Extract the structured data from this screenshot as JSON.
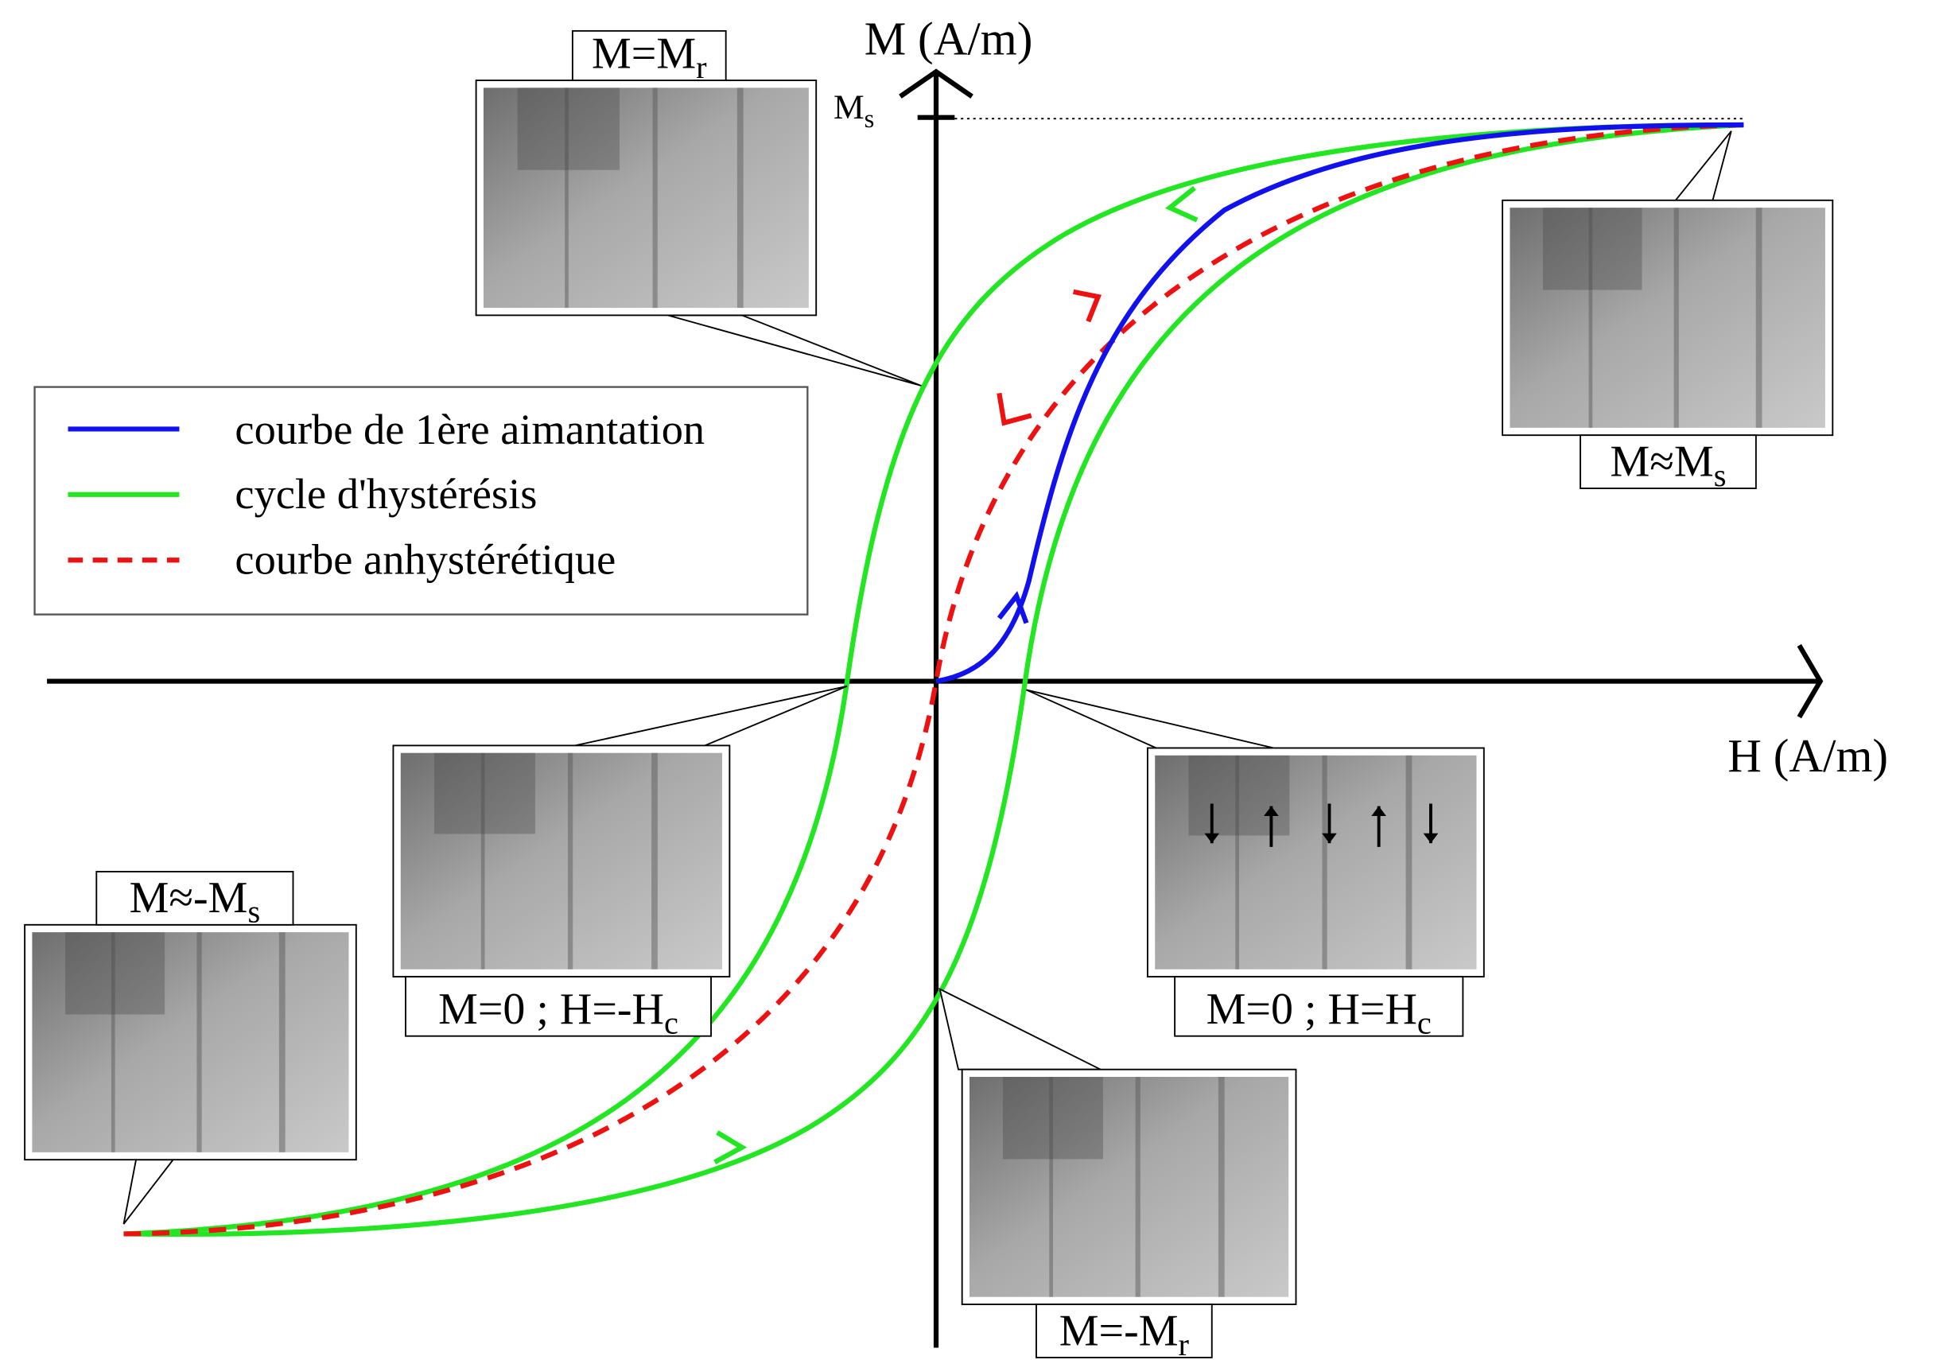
{
  "axes": {
    "x_label": "H (A/m)",
    "y_label": "M (A/m)",
    "ms_tick": {
      "text": "M",
      "sub": "s"
    }
  },
  "legend": [
    {
      "label": "courbe de 1ère aimantation"
    },
    {
      "label": "cycle d'hystérésis"
    },
    {
      "label": "courbe anhystérétique"
    }
  ],
  "images": [
    {
      "label": {
        "text": "M=M",
        "sub": "r"
      }
    },
    {
      "label": {
        "text": "M≈M",
        "sub": "s"
      }
    },
    {
      "label": {
        "text": "M≈-M",
        "sub": "s"
      }
    },
    {
      "label": {
        "text": "M=0 ; H=-H",
        "sub": "c"
      }
    },
    {
      "label": {
        "text": "M=0 ; H=H",
        "sub": "c"
      }
    },
    {
      "label": {
        "text": "M=-M",
        "sub": "r"
      }
    }
  ]
}
